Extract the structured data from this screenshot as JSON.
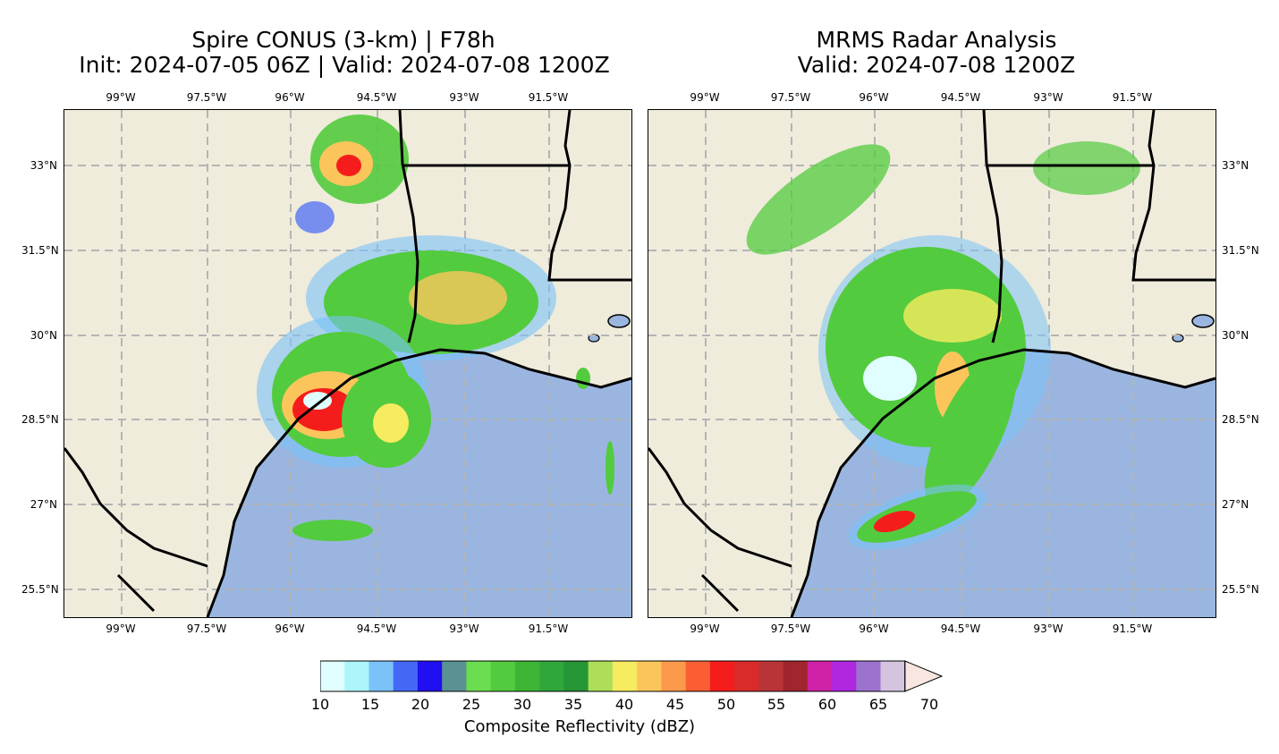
{
  "left_panel": {
    "title_line1": "Spire CONUS (3-km) | F78h",
    "title_line2": "Init: 2024-07-05 06Z | Valid: 2024-07-08 1200Z"
  },
  "right_panel": {
    "title_line1": "MRMS Radar Analysis",
    "title_line2": "Valid: 2024-07-08 1200Z"
  },
  "longitude_labels": [
    "99°W",
    "97.5°W",
    "96°W",
    "94.5°W",
    "93°W",
    "91.5°W"
  ],
  "latitude_labels": [
    "33°N",
    "31.5°N",
    "30°N",
    "28.5°N",
    "27°N",
    "25.5°N"
  ],
  "colorbar": {
    "label": "Composite Reflectivity (dBZ)",
    "tick_labels": [
      "10",
      "15",
      "20",
      "25",
      "30",
      "35",
      "40",
      "45",
      "50",
      "55",
      "60",
      "65",
      "70"
    ],
    "colors": [
      "#e0fdff",
      "#aef5fb",
      "#7ac2f8",
      "#4467f5",
      "#1f0ff1",
      "#5a9294",
      "#6bdd4e",
      "#53cb3e",
      "#3db534",
      "#2fa73a",
      "#269535",
      "#aede59",
      "#f7eb5f",
      "#fbc55c",
      "#fb9a4a",
      "#fb5e33",
      "#f51d1c",
      "#d92c2a",
      "#b83437",
      "#a0252d",
      "#ce22a6",
      "#b027e0",
      "#9c72ce",
      "#d4c4e0",
      "#f8e7e0"
    ]
  },
  "colors": {
    "land": "#efecdc",
    "water": "#9ab6e0",
    "border": "#000000",
    "grid": "#b4b4b4"
  }
}
